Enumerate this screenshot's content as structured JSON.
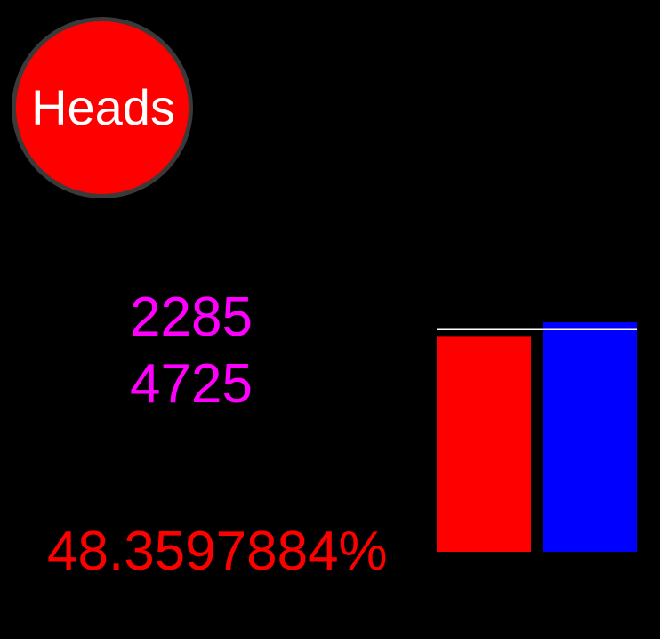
{
  "coin": {
    "face": "Heads",
    "color": "#ff0000"
  },
  "counts": {
    "heads": "2285",
    "flips": "4725",
    "color": "#ff00ff"
  },
  "percentage": {
    "text": "48.3597884%",
    "color": "#ff0000"
  },
  "chart_data": {
    "type": "bar",
    "categories": [
      "",
      ""
    ],
    "values": [
      2285,
      2440
    ],
    "colors": [
      "#ff0000",
      "#0000ff"
    ],
    "reference_line": 2362.5,
    "reference_line_color": "#ffffff",
    "ylim": [
      0,
      2440
    ],
    "grid": false,
    "title": "",
    "xlabel": "",
    "ylabel": ""
  }
}
